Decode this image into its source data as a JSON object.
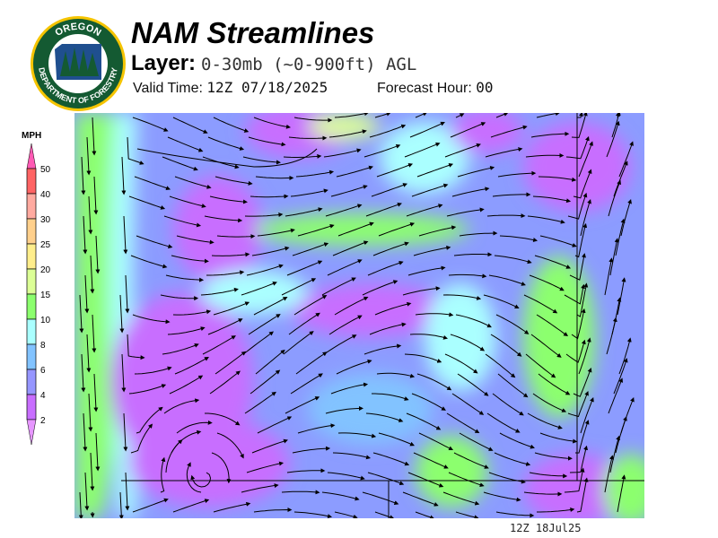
{
  "logo": {
    "top_text": "OREGON",
    "bottom_text": "DEPARTMENT OF FORESTRY"
  },
  "header": {
    "title": "NAM Streamlines",
    "layer_label": "Layer:",
    "layer_value": "0-30mb (~0-900ft) AGL",
    "valid_label": "Valid Time:",
    "valid_value": "12Z 07/18/2025",
    "forecast_label": "Forecast Hour:",
    "forecast_value": "00"
  },
  "legend": {
    "unit": "MPH",
    "ticks": [
      "50",
      "40",
      "30",
      "25",
      "20",
      "15",
      "10",
      "8",
      "6",
      "4",
      "2"
    ],
    "colors": [
      "#ff6464",
      "#ffaaa0",
      "#ffd08c",
      "#ffee8c",
      "#dcff96",
      "#8cff6e",
      "#aaffff",
      "#82c3ff",
      "#9696ff",
      "#c86eff"
    ],
    "top_arrow_color": "#ff5ab4",
    "bottom_arrow_color": "#e696ff"
  },
  "map": {
    "background_color": "#8c9cff"
  },
  "footer": {
    "timestamp": "12Z 18Jul25"
  }
}
